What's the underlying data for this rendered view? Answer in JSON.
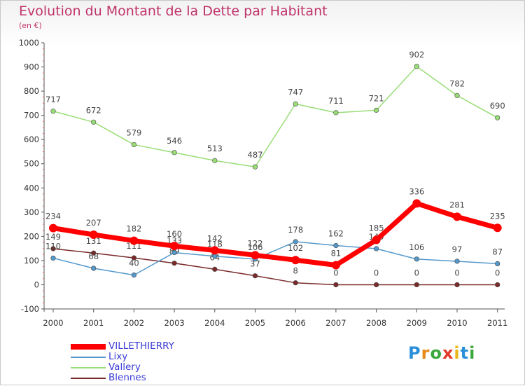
{
  "header": {
    "title": "Evolution du Montant de la Dette par Habitant",
    "subtitle": "(en €)"
  },
  "chart_data": {
    "type": "line",
    "title": "Evolution du Montant de la Dette par Habitant",
    "subtitle": "(en €)",
    "xlabel": "",
    "ylabel": "",
    "x": [
      "2000",
      "2001",
      "2002",
      "2003",
      "2004",
      "2005",
      "2006",
      "2007",
      "2008",
      "2009",
      "2010",
      "2011"
    ],
    "ylim": [
      -100,
      1000
    ],
    "yticks": [
      -100,
      0,
      100,
      200,
      300,
      400,
      500,
      600,
      700,
      800,
      900,
      1000
    ],
    "grid": false,
    "legend_position": "bottom-left",
    "series": [
      {
        "name": "VILLETHIERRY",
        "color": "#ff0000",
        "values": [
          234,
          207,
          182,
          160,
          142,
          122,
          102,
          81,
          185,
          336,
          281,
          235
        ]
      },
      {
        "name": "Lixy",
        "color": "#5599cc",
        "values": [
          110,
          68,
          40,
          133,
          118,
          106,
          178,
          162,
          149,
          106,
          97,
          87
        ]
      },
      {
        "name": "Vallery",
        "color": "#99dd77",
        "values": [
          717,
          672,
          579,
          546,
          513,
          487,
          747,
          711,
          721,
          902,
          782,
          690
        ]
      },
      {
        "name": "Blennes",
        "color": "#7a2a2a",
        "values": [
          149,
          131,
          111,
          89,
          64,
          37,
          8,
          0,
          0,
          0,
          0,
          0
        ]
      }
    ]
  },
  "logo": {
    "letters": [
      "P",
      "r",
      "o",
      "x",
      "i",
      "t",
      "i"
    ],
    "colors": [
      "#2a8fd8",
      "#e88a1a",
      "#3aa83a",
      "#e23a2a",
      "#e8b81a",
      "#2a8fd8",
      "#3aa83a"
    ]
  }
}
